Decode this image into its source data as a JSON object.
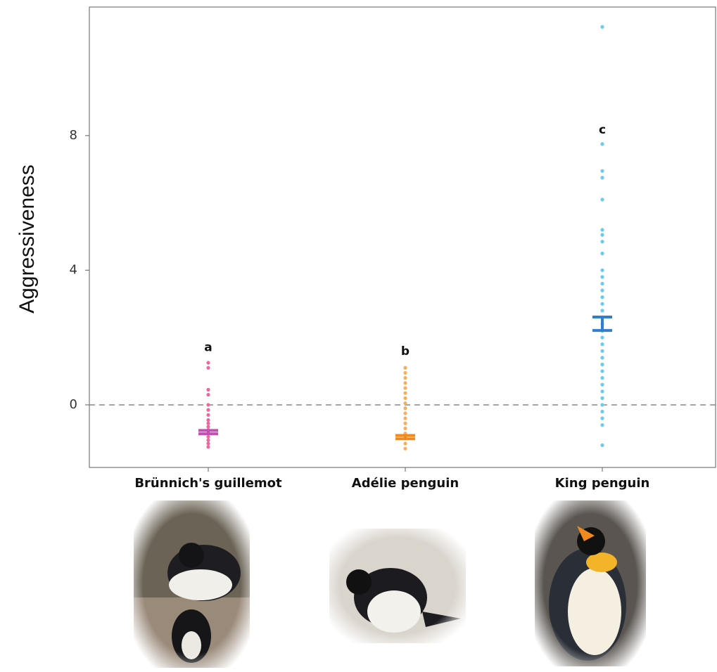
{
  "chart_data": {
    "type": "strip",
    "y_label": "Aggressiveness",
    "ylim": [
      -1.86,
      11.82
    ],
    "yticks": [
      0,
      4,
      8
    ],
    "hline": 0,
    "series": [
      {
        "name": "Brünnich's guillemot",
        "color": "#e86aa0",
        "mean_color": "#c44fb4",
        "letter": "a",
        "letter_y": 1.7,
        "mean": -0.81,
        "error": 0.05,
        "values": [
          1.25,
          1.1,
          0.45,
          0.3,
          0.0,
          -0.15,
          -0.3,
          -0.45,
          -0.55,
          -0.65,
          -0.75,
          -0.85,
          -0.95,
          -1.05,
          -1.15,
          -1.25
        ]
      },
      {
        "name": "Adélie penguin",
        "color": "#f2b060",
        "mean_color": "#f08a1e",
        "letter": "b",
        "letter_y": 1.59,
        "mean": -0.96,
        "error": 0.05,
        "values": [
          1.1,
          0.95,
          0.8,
          0.65,
          0.5,
          0.35,
          0.2,
          0.05,
          -0.1,
          -0.25,
          -0.4,
          -0.55,
          -0.7,
          -0.85,
          -1.0,
          -1.15,
          -1.3
        ]
      },
      {
        "name": "King penguin",
        "color": "#6ccbeb",
        "mean_color": "#2f7fd0",
        "letter": "c",
        "letter_y": 8.16,
        "mean": 2.41,
        "error": 0.2,
        "values": [
          11.23,
          7.75,
          6.95,
          6.75,
          6.1,
          5.2,
          5.05,
          4.85,
          4.5,
          4.0,
          3.8,
          3.6,
          3.4,
          3.2,
          3.0,
          2.8,
          2.6,
          2.4,
          2.2,
          2.0,
          1.8,
          1.6,
          1.4,
          1.2,
          1.0,
          0.8,
          0.6,
          0.4,
          0.2,
          0.0,
          -0.2,
          -0.4,
          -0.6,
          -1.2
        ]
      }
    ]
  }
}
